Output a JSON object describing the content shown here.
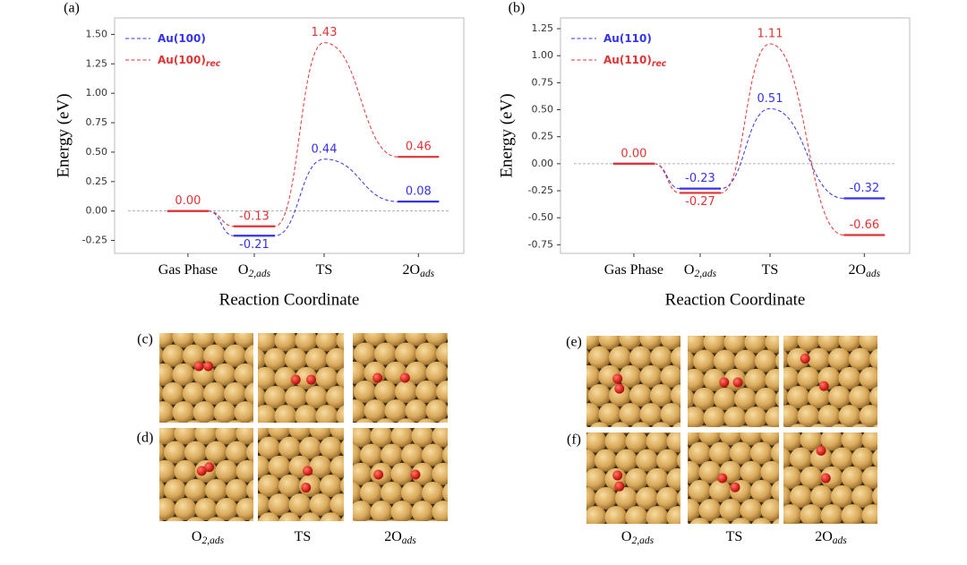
{
  "chart_data": [
    {
      "type": "energy_profile",
      "panel": "(a)",
      "xlabel": "Reaction Coordinate",
      "ylabel": "Energy (eV)",
      "categories": [
        "Gas Phase",
        "O",
        "TS",
        "2O"
      ],
      "category_subscripts": [
        null,
        "2,ads",
        null,
        "ads"
      ],
      "series": [
        {
          "name": "Au(100)",
          "name_subscript": null,
          "color": "#3333ee",
          "values": [
            0.0,
            -0.21,
            0.44,
            0.08
          ],
          "value_labels": [
            null,
            "-0.21",
            "0.44",
            "0.08"
          ]
        },
        {
          "name": "Au(100)",
          "name_subscript": "rec",
          "color": "#e03333",
          "values": [
            0.0,
            -0.13,
            1.43,
            0.46
          ],
          "value_labels": [
            "0.00",
            "-0.13",
            "1.43",
            "0.46"
          ]
        }
      ],
      "ylim": [
        -0.36,
        1.64
      ],
      "yticks": [
        {
          "value": -0.25,
          "label": "-0.25"
        },
        {
          "value": 0,
          "label": "0.00"
        },
        {
          "value": 0.25,
          "label": "0.25"
        },
        {
          "value": 0.5,
          "label": "0.50"
        },
        {
          "value": 0.75,
          "label": "0.75"
        },
        {
          "value": 1,
          "label": "1.00"
        },
        {
          "value": 1.25,
          "label": "1.25"
        },
        {
          "value": 1.5,
          "label": "1.50"
        }
      ],
      "reference_line": 0,
      "legend": "upper left"
    },
    {
      "type": "energy_profile",
      "panel": "(b)",
      "xlabel": "Reaction Coordinate",
      "ylabel": "Energy (eV)",
      "categories": [
        "Gas Phase",
        "O",
        "TS",
        "2O"
      ],
      "category_subscripts": [
        null,
        "2,ads",
        null,
        "ads"
      ],
      "series": [
        {
          "name": "Au(110)",
          "name_subscript": null,
          "color": "#3333ee",
          "values": [
            0.0,
            -0.23,
            0.51,
            -0.32
          ],
          "value_labels": [
            null,
            "-0.23",
            "0.51",
            "-0.32"
          ]
        },
        {
          "name": "Au(110)",
          "name_subscript": "rec",
          "color": "#e03333",
          "values": [
            0.0,
            -0.27,
            1.11,
            -0.66
          ],
          "value_labels": [
            "0.00",
            "-0.27",
            "1.11",
            "-0.66"
          ]
        }
      ],
      "ylim": [
        -0.83,
        1.35
      ],
      "yticks": [
        {
          "value": -0.75,
          "label": "-0.75"
        },
        {
          "value": -0.5,
          "label": "-0.50"
        },
        {
          "value": -0.25,
          "label": "-0.25"
        },
        {
          "value": 0,
          "label": "0.00"
        },
        {
          "value": 0.25,
          "label": "0.25"
        },
        {
          "value": 0.5,
          "label": "0.50"
        },
        {
          "value": 0.75,
          "label": "0.75"
        },
        {
          "value": 1,
          "label": "1.00"
        },
        {
          "value": 1.25,
          "label": "1.25"
        }
      ],
      "reference_line": 0,
      "legend": "upper left"
    }
  ],
  "structures": {
    "row_labels": [
      "(c)",
      "(d)",
      "(e)",
      "(f)"
    ],
    "captions_left": [
      {
        "text": "O",
        "sub": "2,ads"
      },
      {
        "text": "TS",
        "sub": null
      },
      {
        "text": "2O",
        "sub": "ads"
      }
    ],
    "captions_right": [
      {
        "text": "O",
        "sub": "2,ads"
      },
      {
        "text": "TS",
        "sub": null
      },
      {
        "text": "2O",
        "sub": "ads"
      }
    ]
  }
}
